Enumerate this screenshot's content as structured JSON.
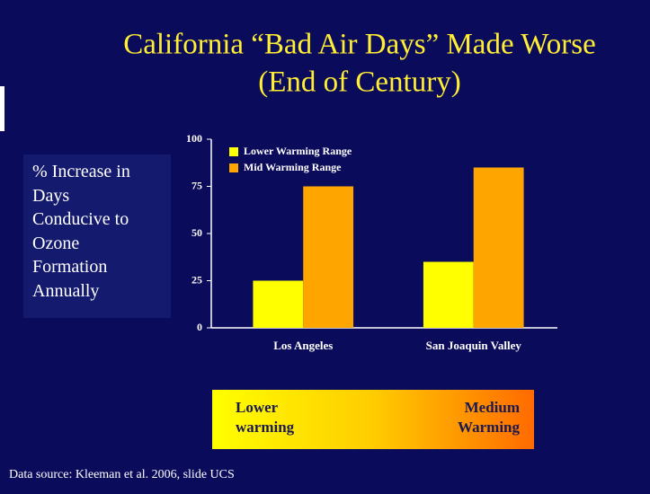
{
  "chart_data": {
    "type": "bar",
    "title": [
      "California “Bad Air Days” Made Worse",
      "(End of Century)"
    ],
    "y_label": [
      "% Increase in",
      "Days",
      "Conducive to",
      "Ozone",
      "Formation",
      "Annually"
    ],
    "categories": [
      "Los Angeles",
      "San Joaquin Valley"
    ],
    "series": [
      {
        "name": "Lower Warming Range",
        "color": "#ffff00",
        "values": [
          25,
          35
        ]
      },
      {
        "name": "Mid Warming Range",
        "color": "#ffa500",
        "values": [
          75,
          85
        ]
      }
    ],
    "ylim": [
      0,
      100
    ],
    "yticks": [
      0,
      25,
      50,
      75,
      100
    ],
    "grid": false,
    "legend": "top-left",
    "scale_labels": {
      "low": [
        "Lower",
        "warming"
      ],
      "high": [
        "Medium",
        "Warming"
      ]
    },
    "source": "Data source:  Kleeman et al. 2006, slide UCS"
  }
}
